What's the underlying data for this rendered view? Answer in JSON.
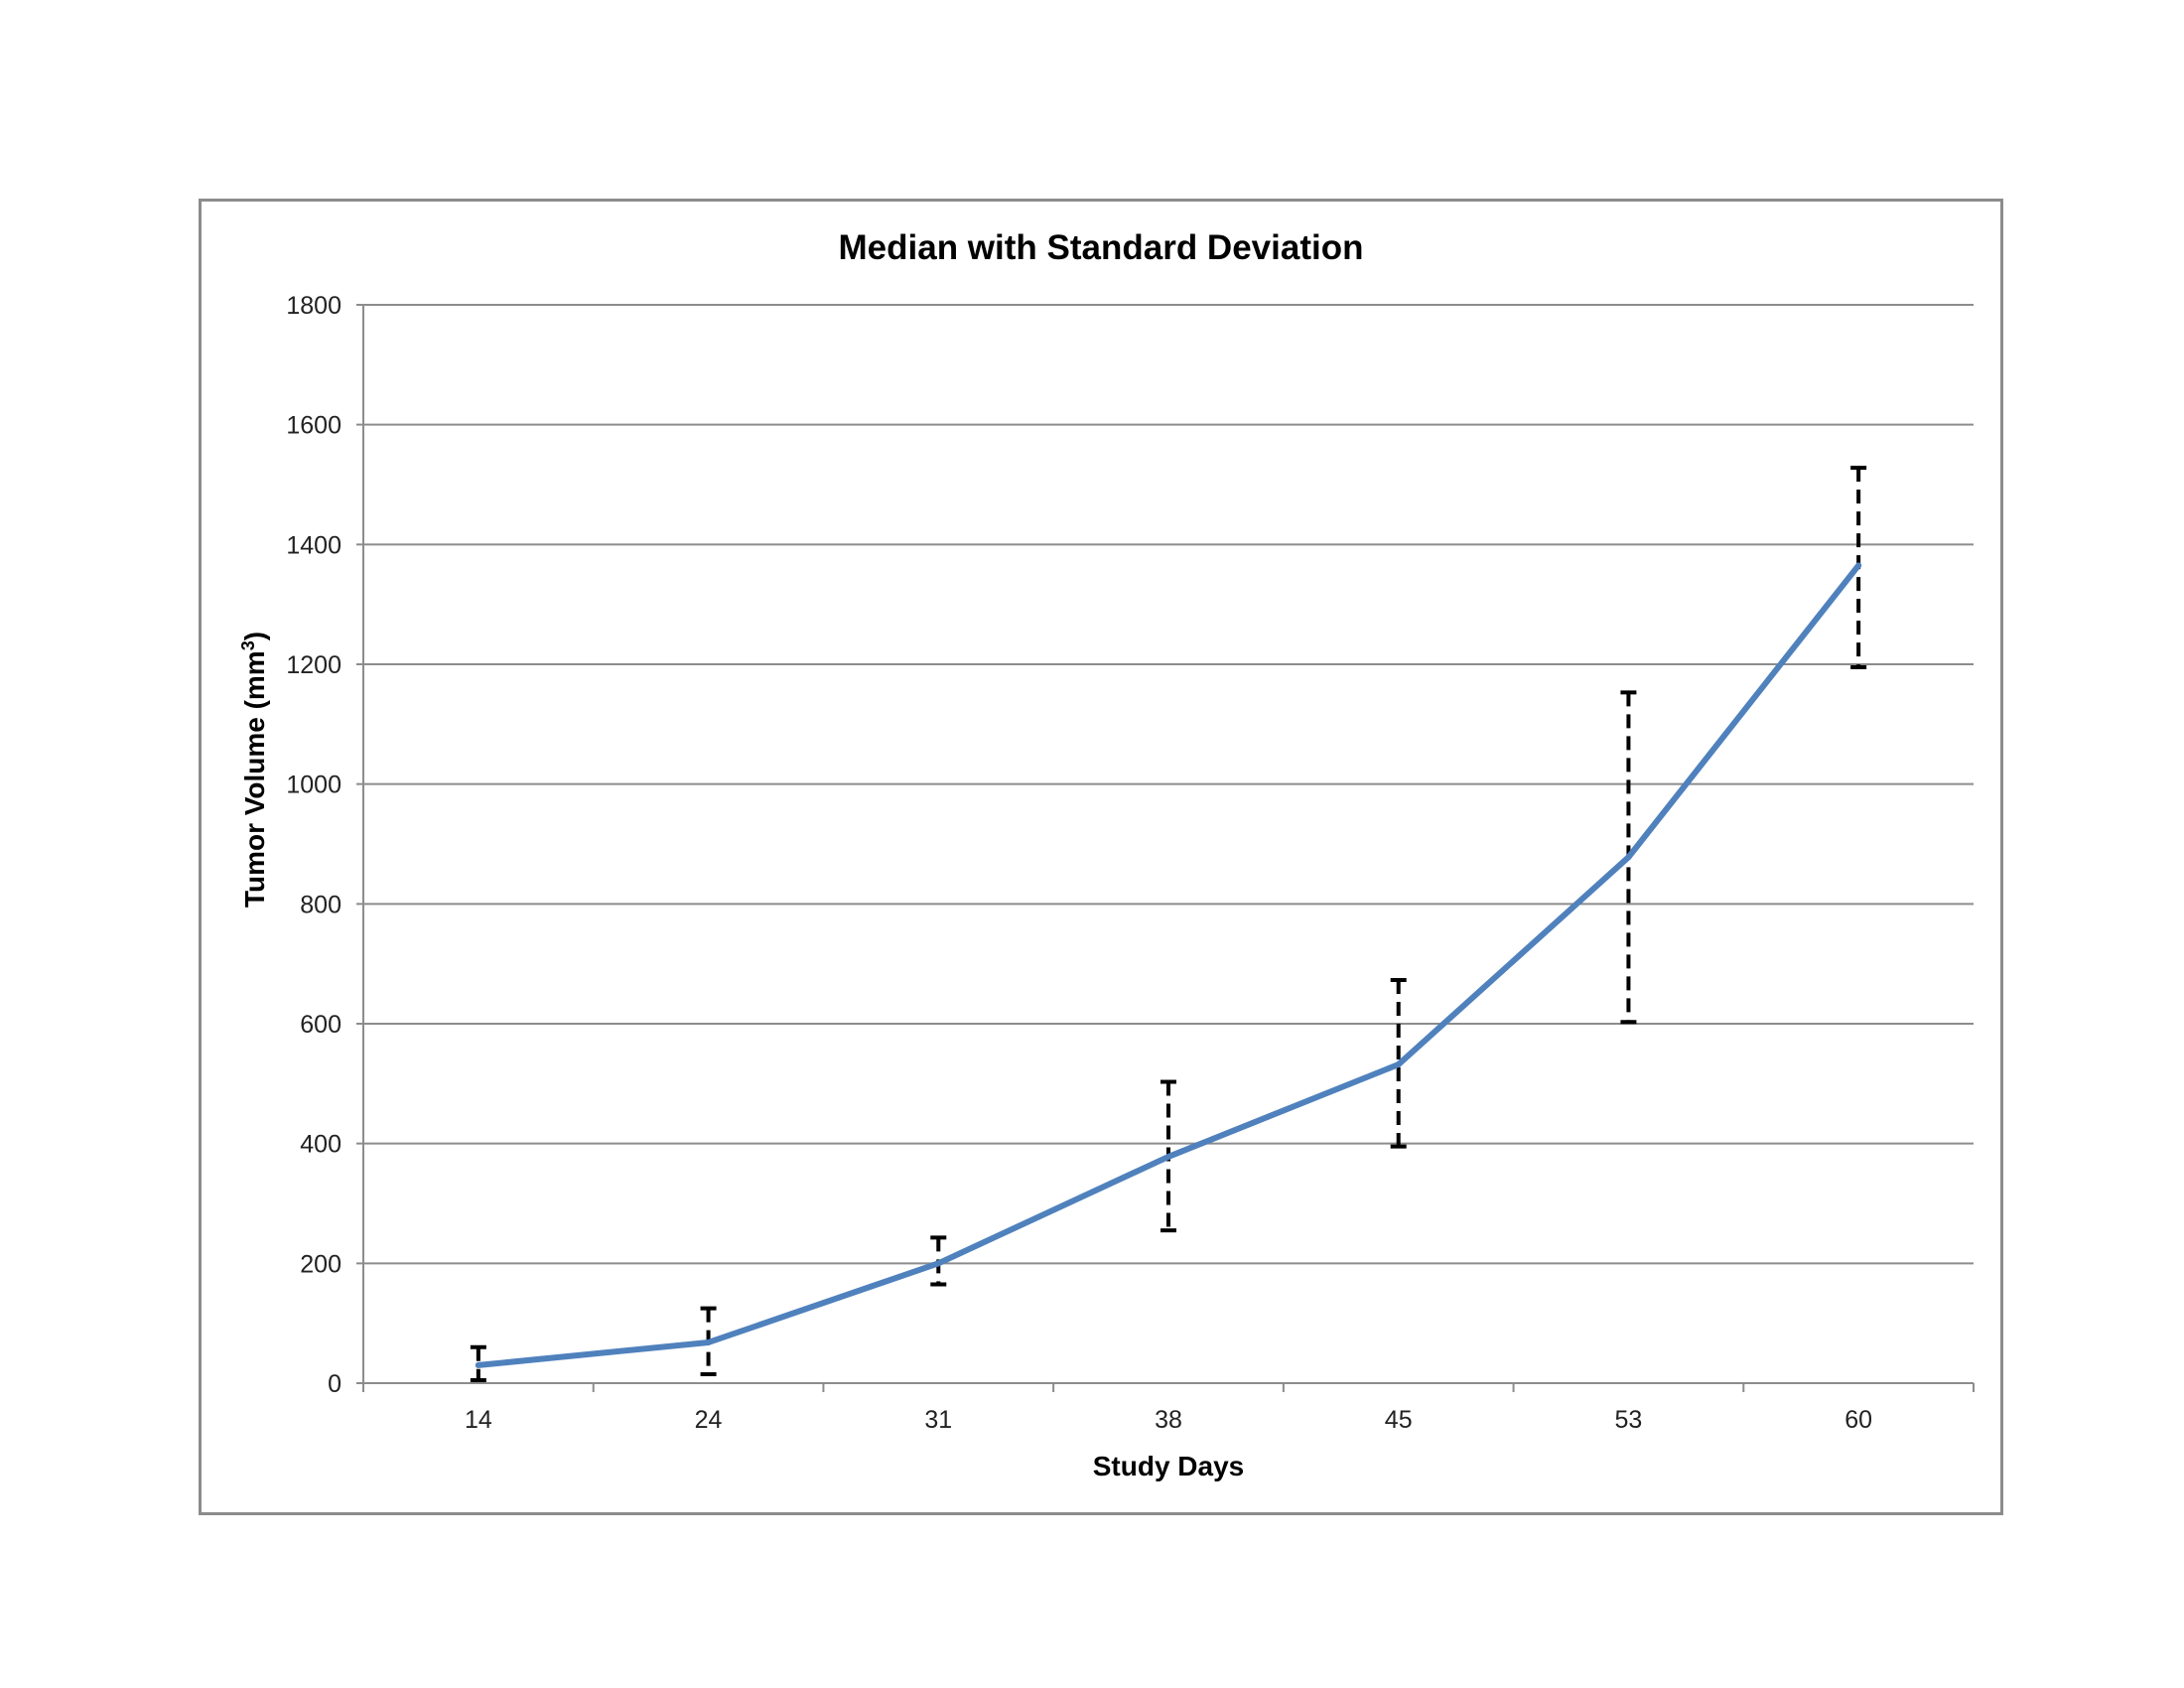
{
  "chart_data": {
    "type": "line",
    "title": "Median with Standard Deviation",
    "xlabel": "Study Days",
    "ylabel_main": "Tumor Volume (mm",
    "ylabel_sup": "3",
    "ylabel_end": ")",
    "categories": [
      "14",
      "24",
      "31",
      "38",
      "45",
      "53",
      "60"
    ],
    "series": [
      {
        "name": "Median",
        "values": [
          30,
          68,
          200,
          378,
          532,
          878,
          1365
        ],
        "error_low": [
          5,
          15,
          165,
          255,
          395,
          603,
          1195
        ],
        "error_high": [
          60,
          125,
          243,
          503,
          673,
          1153,
          1528
        ]
      }
    ],
    "ylim": [
      0,
      1800
    ],
    "yticks": [
      0,
      200,
      400,
      600,
      800,
      1000,
      1200,
      1400,
      1600,
      1800
    ],
    "grid": true,
    "line_color": "#4f81bd",
    "error_bar_color": "#000000",
    "grid_color": "#8c8c8c"
  }
}
